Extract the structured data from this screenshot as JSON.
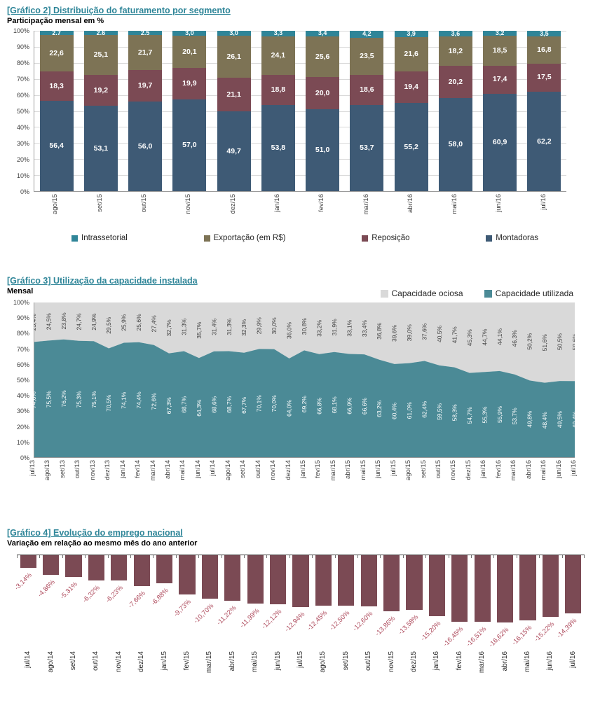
{
  "theme": {
    "heading_color": "#2E8598",
    "axis_color": "#9B9B9B",
    "gridline_color": "#D9D9D9"
  },
  "chart_data": [
    {
      "id": "grafico2",
      "type": "bar",
      "variant": "stacked-100",
      "title": "[Gráfico 2] Distribuição do faturamento por segmento",
      "subtitle": "Participação mensal em %",
      "categories": [
        "ago/15",
        "set/15",
        "out/15",
        "nov/15",
        "dez/15",
        "jan/16",
        "fev/16",
        "mar/16",
        "abr/16",
        "mai/16",
        "jun/16",
        "jul/16"
      ],
      "series": [
        {
          "name": "Montadoras",
          "color": "#3E5A75",
          "values": [
            56.4,
            53.1,
            56.0,
            57.0,
            49.7,
            53.8,
            51.0,
            53.7,
            55.2,
            58.0,
            60.9,
            62.2
          ]
        },
        {
          "name": "Reposição",
          "color": "#7B4A54",
          "values": [
            18.3,
            19.2,
            19.7,
            19.9,
            21.1,
            18.8,
            20.0,
            18.6,
            19.4,
            20.2,
            17.4,
            17.5
          ]
        },
        {
          "name": "Exportação (em R$)",
          "color": "#7D7355",
          "values": [
            22.6,
            25.1,
            21.7,
            20.1,
            26.1,
            24.1,
            25.6,
            23.5,
            21.6,
            18.2,
            18.5,
            16.8
          ]
        },
        {
          "name": "Intrassetorial",
          "color": "#2F8598",
          "values": [
            2.7,
            2.6,
            2.5,
            3.0,
            3.0,
            3.3,
            3.4,
            4.2,
            3.9,
            3.6,
            3.2,
            3.5
          ]
        }
      ],
      "legend": [
        "Intrassetorial",
        "Exportação (em R$)",
        "Reposição",
        "Montadoras"
      ],
      "y_ticks": [
        "100%",
        "90%",
        "80%",
        "70%",
        "60%",
        "50%",
        "40%",
        "30%",
        "20%",
        "10%",
        "0%"
      ],
      "ylim": [
        0,
        100
      ],
      "grid": true,
      "label_format": "one-decimal-comma"
    },
    {
      "id": "grafico3",
      "type": "area",
      "variant": "stacked-100",
      "title": "[Gráfico 3] Utilização da capacidade instalada",
      "subtitle": "Mensal",
      "categories": [
        "jul/13",
        "ago/13",
        "set/13",
        "out/13",
        "nov/13",
        "dez/13",
        "jan/14",
        "fev/14",
        "mar/14",
        "abr/14",
        "mai/14",
        "jun/14",
        "jul/14",
        "ago/14",
        "set/14",
        "out/14",
        "nov/14",
        "dez/14",
        "jan/15",
        "fev/15",
        "mar/15",
        "abr/15",
        "mai/15",
        "jun/15",
        "jul/15",
        "ago/15",
        "set/15",
        "out/15",
        "nov/15",
        "dez/15",
        "jan/16",
        "fev/16",
        "mar/16",
        "abr/16",
        "mai/16",
        "jun/16",
        "jul/16"
      ],
      "series": [
        {
          "name": "Capacidade utilizada",
          "color": "#4B8A96",
          "label_color": "#FFFFFF",
          "values": [
            74.6,
            75.5,
            76.2,
            75.3,
            75.1,
            70.5,
            74.1,
            74.4,
            72.6,
            67.3,
            68.7,
            64.3,
            68.6,
            68.7,
            67.7,
            70.1,
            70.0,
            64.0,
            69.2,
            66.8,
            68.1,
            66.9,
            66.6,
            63.2,
            60.4,
            61.0,
            62.4,
            59.5,
            58.3,
            54.7,
            55.3,
            55.9,
            53.7,
            49.8,
            48.4,
            49.5,
            49.4
          ]
        },
        {
          "name": "Capacidade ociosa",
          "color": "#D9D9D9",
          "label_color": "#404040",
          "values": [
            25.4,
            24.5,
            23.8,
            24.7,
            24.9,
            29.5,
            25.9,
            25.6,
            27.4,
            32.7,
            31.3,
            35.7,
            31.4,
            31.3,
            32.3,
            29.9,
            30.0,
            36.0,
            30.8,
            33.2,
            31.9,
            33.1,
            33.4,
            36.8,
            39.6,
            39.0,
            37.6,
            40.5,
            41.7,
            45.3,
            44.7,
            44.1,
            46.3,
            50.2,
            51.6,
            50.5,
            50.6
          ]
        }
      ],
      "legend": [
        "Capacidade ociosa",
        "Capacidade utilizada"
      ],
      "y_ticks": [
        "100%",
        "90%",
        "80%",
        "70%",
        "60%",
        "50%",
        "40%",
        "30%",
        "20%",
        "10%",
        "0%"
      ],
      "ylim": [
        0,
        100
      ],
      "label_format": "one-decimal-comma-percent"
    },
    {
      "id": "grafico4",
      "type": "bar",
      "variant": "negative-column",
      "title": "[Gráfico 4] Evolução do emprego nacional",
      "subtitle": "Variação em relação ao mesmo mês do ano anterior",
      "categories": [
        "jul/14",
        "ago/14",
        "set/14",
        "out/14",
        "nov/14",
        "dez/14",
        "jan/15",
        "fev/15",
        "mar/15",
        "abr/15",
        "mai/15",
        "jun/15",
        "jul/15",
        "ago/15",
        "set/15",
        "out/15",
        "nov/15",
        "dez/15",
        "jan/16",
        "fev/16",
        "mar/16",
        "abr/16",
        "mai/16",
        "jun/16",
        "jul/16"
      ],
      "values": [
        -3.14,
        -4.86,
        -5.31,
        -6.32,
        -6.23,
        -7.66,
        -6.88,
        -9.73,
        -10.7,
        -11.22,
        -11.99,
        -12.12,
        -12.94,
        -12.45,
        -12.5,
        -12.6,
        -13.86,
        -13.58,
        -15.2,
        -16.45,
        -16.51,
        -16.62,
        -16.15,
        -15.22,
        -14.39
      ],
      "bar_color": "#7B4A54",
      "label_color": "#AE4A5C",
      "ylim": [
        -17.5,
        0
      ],
      "label_format": "two-decimal-comma-percent"
    }
  ]
}
